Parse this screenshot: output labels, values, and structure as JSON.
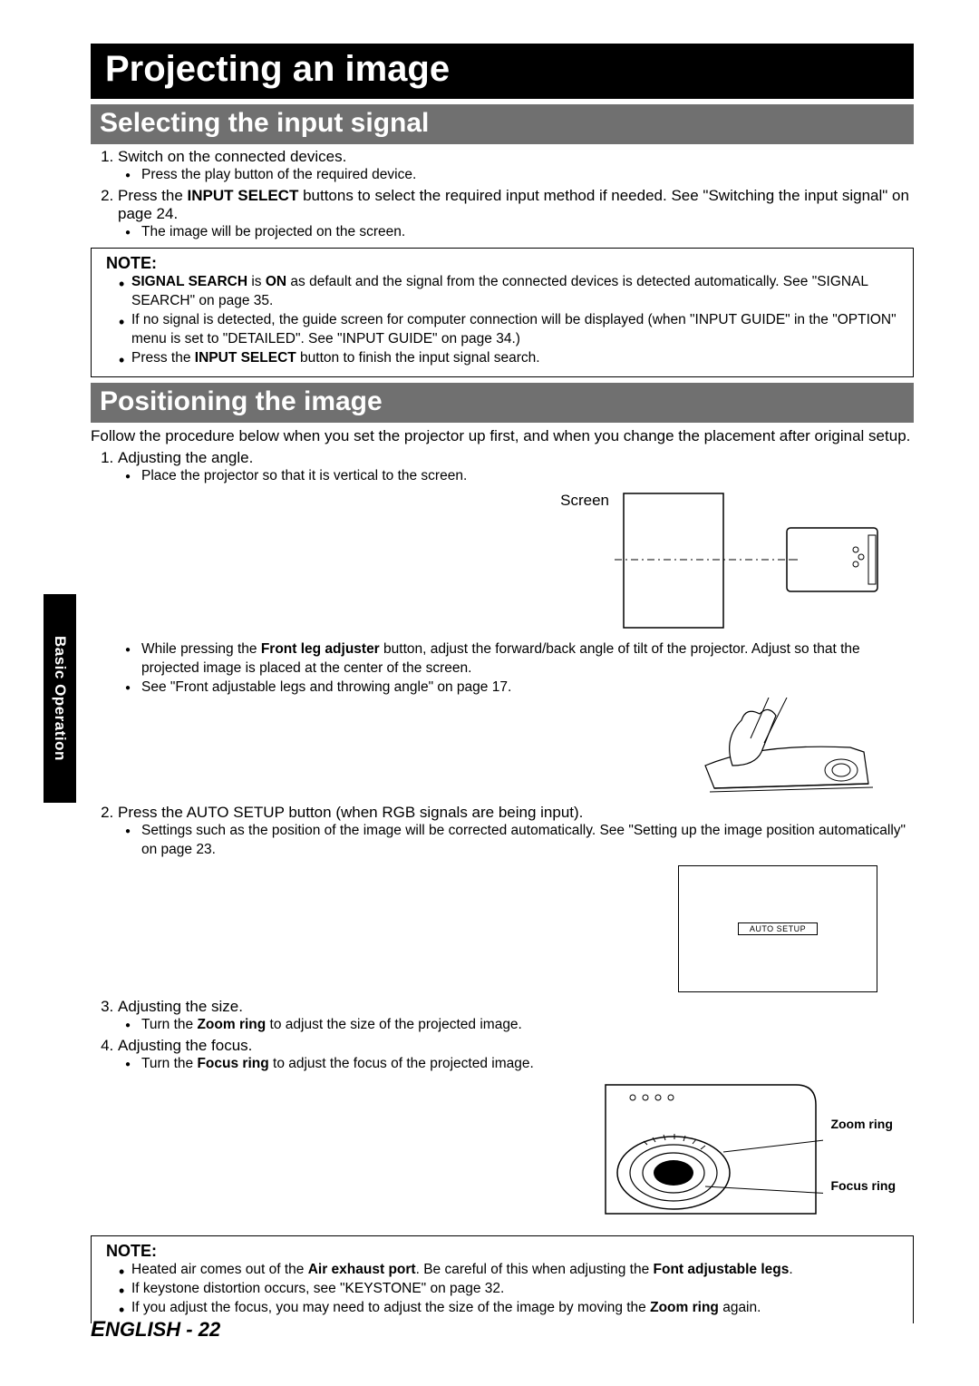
{
  "title": "Projecting an image",
  "sideTab": "Basic Operation",
  "footer": {
    "lang": "ENGLISH",
    "sep": " - ",
    "page": "22"
  },
  "section1": {
    "heading": "Selecting the input signal",
    "steps": [
      {
        "text": "Switch on the connected devices.",
        "sub": [
          "Press the play button of the required device."
        ]
      },
      {
        "html": "Press the <b>INPUT SELECT</b> buttons to select the required input method if needed. See \"Switching the input signal\" on page 24.",
        "sub": [
          "The image will be projected on the screen."
        ]
      }
    ],
    "note": {
      "title": "NOTE:",
      "items": [
        "<b>SIGNAL SEARCH</b> is <b>ON</b> as default and the signal from the connected devices is detected automatically. See \"SIGNAL SEARCH\" on page 35.",
        "If no signal is detected, the guide screen for computer connection will be displayed (when \"INPUT GUIDE\" in the \"OPTION\" menu is set to \"DETAILED\". See \"INPUT GUIDE\" on page 34.)",
        "Press the <b>INPUT SELECT</b> button to finish the input signal search."
      ]
    }
  },
  "section2": {
    "heading": "Positioning the image",
    "intro": "Follow the procedure below when you set the projector up first, and when you change the placement after original setup.",
    "screenLabel": "Screen",
    "autosetupLabel": "AUTO SETUP",
    "ringLabels": {
      "zoom": "Zoom ring",
      "focus": "Focus ring"
    },
    "steps": [
      {
        "text": "Adjusting the angle.",
        "sub": [
          "Place the projector so that it is vertical to the screen."
        ],
        "sub2": [
          "While pressing the <b>Front leg adjuster</b> button, adjust the forward/back angle of tilt of the projector. Adjust so that the projected image is placed at the center of the screen.",
          "See \"Front adjustable legs and throwing angle\" on page 17."
        ]
      },
      {
        "text": "Press the AUTO SETUP button (when RGB signals are being input).",
        "sub": [
          "Settings such as the position of the image will be corrected automatically. See \"Setting up the image position automatically\" on page 23."
        ]
      },
      {
        "text": "Adjusting the size.",
        "sub": [
          "Turn the <b>Zoom ring</b> to adjust the size of the projected image."
        ]
      },
      {
        "text": "Adjusting the focus.",
        "sub": [
          "Turn the <b>Focus ring</b> to adjust the focus of the projected image."
        ]
      }
    ],
    "note": {
      "title": "NOTE:",
      "items": [
        "Heated air comes out of the <b>Air exhaust port</b>. Be careful of this when adjusting the <b>Font adjustable legs</b>.",
        "If keystone distortion occurs, see \"KEYSTONE\" on page 32.",
        "If you adjust the focus, you may need to adjust the size of the image by moving the <b>Zoom ring</b> again."
      ]
    }
  }
}
